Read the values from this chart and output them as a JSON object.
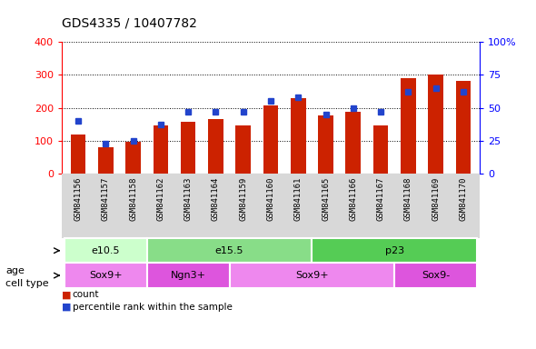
{
  "title": "GDS4335 / 10407782",
  "samples": [
    "GSM841156",
    "GSM841157",
    "GSM841158",
    "GSM841162",
    "GSM841163",
    "GSM841164",
    "GSM841159",
    "GSM841160",
    "GSM841161",
    "GSM841165",
    "GSM841166",
    "GSM841167",
    "GSM841168",
    "GSM841169",
    "GSM841170"
  ],
  "counts": [
    120,
    80,
    97,
    147,
    157,
    167,
    147,
    207,
    228,
    177,
    187,
    147,
    290,
    302,
    282
  ],
  "percentile_ranks": [
    40,
    23,
    25,
    37,
    47,
    47,
    47,
    55,
    58,
    45,
    50,
    47,
    62,
    65,
    62
  ],
  "ylim_left": [
    0,
    400
  ],
  "ylim_right": [
    0,
    100
  ],
  "yticks_left": [
    0,
    100,
    200,
    300,
    400
  ],
  "yticks_right": [
    0,
    25,
    50,
    75,
    100
  ],
  "yticklabels_right": [
    "0",
    "25",
    "50",
    "75",
    "100%"
  ],
  "bar_color": "#cc2200",
  "dot_color": "#2244cc",
  "age_groups": [
    {
      "label": "e10.5",
      "start": 0,
      "end": 3,
      "color": "#ccffcc"
    },
    {
      "label": "e15.5",
      "start": 3,
      "end": 9,
      "color": "#88dd88"
    },
    {
      "label": "p23",
      "start": 9,
      "end": 15,
      "color": "#55cc55"
    }
  ],
  "cell_type_groups": [
    {
      "label": "Sox9+",
      "start": 0,
      "end": 3,
      "color": "#ee88ee"
    },
    {
      "label": "Ngn3+",
      "start": 3,
      "end": 6,
      "color": "#dd55dd"
    },
    {
      "label": "Sox9+",
      "start": 6,
      "end": 12,
      "color": "#ee88ee"
    },
    {
      "label": "Sox9-",
      "start": 12,
      "end": 15,
      "color": "#dd55dd"
    }
  ],
  "bg_color": "#ffffff",
  "plot_bg": "#f0f0f0",
  "grid_color": "#000000",
  "age_label": "age",
  "cell_type_label": "cell type",
  "legend_count_label": "count",
  "legend_pct_label": "percentile rank within the sample"
}
